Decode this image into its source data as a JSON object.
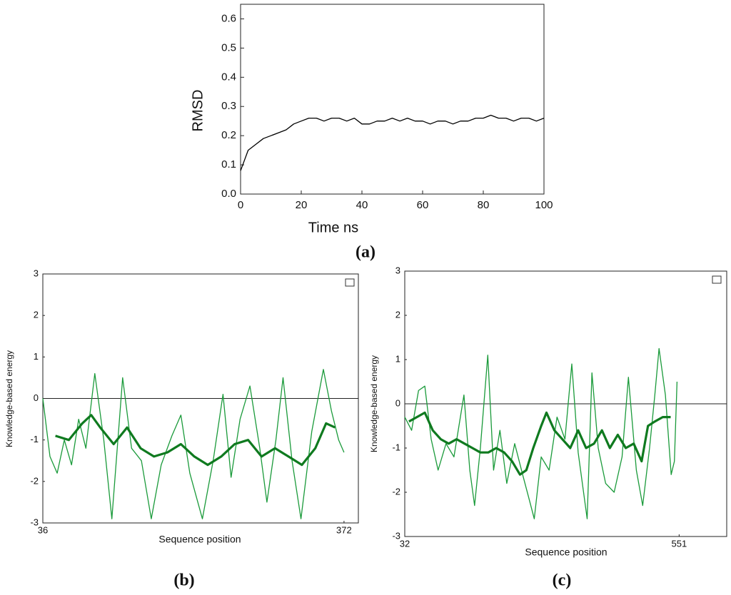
{
  "chart_data": [
    {
      "type": "line",
      "xlabel": "Time ns",
      "ylabel": "RMSD",
      "caption": "(a)",
      "xlim": [
        0,
        100
      ],
      "ylim": [
        0,
        0.65
      ],
      "xticks": [
        0,
        20,
        40,
        60,
        80,
        100
      ],
      "yticks": [
        {
          "value": 0,
          "label": "0.0"
        },
        0.1,
        0.2,
        0.3,
        0.4,
        0.5,
        0.6
      ],
      "series": [
        {
          "color": "#000000",
          "x": [
            0,
            2.5,
            5,
            7.5,
            10,
            12.5,
            15,
            17.5,
            20,
            22.5,
            25,
            27.5,
            30,
            32.5,
            35,
            37.5,
            40,
            42.5,
            45,
            47.5,
            50,
            52.5,
            55,
            57.5,
            60,
            62.5,
            65,
            67.5,
            70,
            72.5,
            75,
            77.5,
            80,
            82.5,
            85,
            87.5,
            90,
            92.5,
            95,
            97.5,
            100
          ],
          "values": [
            0.08,
            0.15,
            0.17,
            0.19,
            0.2,
            0.21,
            0.22,
            0.24,
            0.25,
            0.26,
            0.26,
            0.25,
            0.26,
            0.26,
            0.25,
            0.26,
            0.24,
            0.24,
            0.25,
            0.25,
            0.26,
            0.25,
            0.26,
            0.25,
            0.25,
            0.24,
            0.25,
            0.25,
            0.24,
            0.25,
            0.25,
            0.26,
            0.26,
            0.27,
            0.26,
            0.26,
            0.25,
            0.26,
            0.26,
            0.25,
            0.26
          ]
        }
      ]
    },
    {
      "type": "line",
      "xlabel": "Sequence position",
      "ylabel": "Knowledge-based energy",
      "caption": "(b)",
      "xlim": [
        36,
        388
      ],
      "ylim": [
        -3,
        3
      ],
      "xticks": [
        36,
        372
      ],
      "yticks": [
        -3,
        -2,
        -1,
        0,
        1,
        2,
        3
      ],
      "reference_line": 0,
      "series": [
        {
          "color": "#1a9a3a",
          "x": [
            36,
            44,
            52,
            60,
            68,
            76,
            84,
            94,
            104,
            113,
            125,
            135,
            146,
            157,
            168,
            180,
            190,
            200,
            214,
            226,
            237,
            246,
            256,
            267,
            278,
            286,
            296,
            304,
            314,
            324,
            336,
            349,
            358,
            366,
            372
          ],
          "values": [
            0,
            -1.4,
            -1.8,
            -1.0,
            -1.6,
            -0.5,
            -1.2,
            0.6,
            -1.0,
            -2.9,
            0.5,
            -1.2,
            -1.5,
            -2.9,
            -1.6,
            -0.9,
            -0.4,
            -1.8,
            -2.9,
            -1.5,
            0.1,
            -1.9,
            -0.5,
            0.3,
            -1.2,
            -2.5,
            -1.0,
            0.5,
            -1.5,
            -2.9,
            -0.8,
            0.7,
            -0.3,
            -1.0,
            -1.3
          ]
        },
        {
          "color": "#0f7a1f",
          "x": [
            50,
            65,
            80,
            90,
            100,
            115,
            130,
            145,
            160,
            175,
            190,
            205,
            220,
            235,
            250,
            265,
            280,
            295,
            310,
            325,
            340,
            352,
            362
          ],
          "values": [
            -0.9,
            -1.0,
            -0.6,
            -0.4,
            -0.7,
            -1.1,
            -0.7,
            -1.2,
            -1.4,
            -1.3,
            -1.1,
            -1.4,
            -1.6,
            -1.4,
            -1.1,
            -1.0,
            -1.4,
            -1.2,
            -1.4,
            -1.6,
            -1.2,
            -0.6,
            -0.7
          ]
        }
      ]
    },
    {
      "type": "line",
      "xlabel": "Sequence position",
      "ylabel": "Knowledge-based energy",
      "caption": "(c)",
      "xlim": [
        32,
        641
      ],
      "ylim": [
        -3,
        3
      ],
      "xticks": [
        32,
        551
      ],
      "yticks": [
        -3,
        -2,
        -1,
        0,
        1,
        2,
        3
      ],
      "reference_line": 0,
      "series": [
        {
          "color": "#1a9a3a",
          "x": [
            32,
            45,
            58,
            70,
            82,
            95,
            110,
            125,
            144,
            155,
            164,
            175,
            189,
            200,
            212,
            225,
            240,
            255,
            266,
            277,
            290,
            305,
            320,
            335,
            348,
            360,
            377,
            386,
            398,
            412,
            428,
            443,
            455,
            470,
            482,
            495,
            505,
            513,
            525,
            536,
            542,
            547
          ],
          "values": [
            -0.3,
            -0.6,
            0.3,
            0.4,
            -0.8,
            -1.5,
            -0.9,
            -1.2,
            0.2,
            -1.5,
            -2.3,
            -1.0,
            1.1,
            -1.5,
            -0.6,
            -1.8,
            -0.9,
            -1.6,
            -2.1,
            -2.6,
            -1.2,
            -1.5,
            -0.3,
            -0.8,
            0.9,
            -1.1,
            -2.6,
            0.7,
            -1.0,
            -1.8,
            -2.0,
            -1.2,
            0.6,
            -1.5,
            -2.3,
            -1.0,
            0.2,
            1.25,
            0.2,
            -1.6,
            -1.3,
            0.5
          ]
        },
        {
          "color": "#0f7a1f",
          "x": [
            40,
            55,
            70,
            85,
            100,
            115,
            130,
            145,
            160,
            175,
            190,
            205,
            220,
            235,
            250,
            262,
            275,
            290,
            300,
            315,
            330,
            345,
            360,
            375,
            390,
            405,
            420,
            435,
            450,
            465,
            480,
            492,
            505,
            520,
            535
          ],
          "values": [
            -0.4,
            -0.3,
            -0.2,
            -0.6,
            -0.8,
            -0.9,
            -0.8,
            -0.9,
            -1.0,
            -1.1,
            -1.1,
            -1.0,
            -1.1,
            -1.3,
            -1.6,
            -1.5,
            -1.0,
            -0.5,
            -0.2,
            -0.6,
            -0.8,
            -1.0,
            -0.6,
            -1.0,
            -0.9,
            -0.6,
            -1.0,
            -0.7,
            -1.0,
            -0.9,
            -1.3,
            -0.5,
            -0.4,
            -0.3,
            -0.3
          ]
        }
      ]
    }
  ]
}
